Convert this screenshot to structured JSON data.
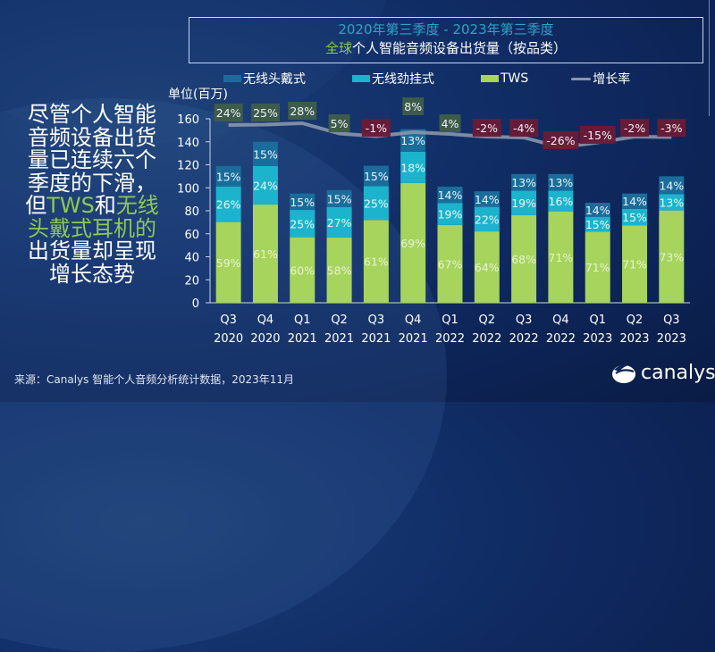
{
  "header": {
    "subtitle": "2020年第三季度 - 2023年第三季度",
    "title_highlight": "全球",
    "title_rest": "个人智能音频设备出货量（按品类）"
  },
  "side_text": {
    "line1": "尽管个人智能",
    "line2": "音频设备出货",
    "line3": "量已连续六个",
    "line4": "季度的下滑，",
    "line5_pre": "但",
    "line5_tws": "TWS",
    "line5_mid": "和",
    "line5_hl": "无线",
    "line6": "头戴式耳机的",
    "line7": "出货量却呈现",
    "line8": "增长态势"
  },
  "footer": {
    "source": "来源：Canalys 智能个人音频分析统计数据，2023年11月",
    "logo_text": "canalys"
  },
  "colors": {
    "headphones": "#1a6d9a",
    "neckband": "#1cb3cc",
    "tws": "#a6d45c",
    "growth_line": "#8a96a8",
    "positive_badge": "#3f5e4a",
    "negative_badge": "#6b1a36"
  },
  "chart_data": {
    "type": "bar",
    "stacked": true,
    "title": "全球个人智能音频设备出货量（按品类）",
    "subtitle": "2020年第三季度 - 2023年第三季度",
    "ylabel": "单位(百万)",
    "ylim": [
      0,
      160
    ],
    "yticks": [
      0,
      20,
      40,
      60,
      80,
      100,
      120,
      140,
      160
    ],
    "legend": [
      "无线头戴式",
      "无线劲挂式",
      "TWS",
      "增长率"
    ],
    "legend_position": "top",
    "categories": [
      [
        "Q3",
        "2020"
      ],
      [
        "Q4",
        "2020"
      ],
      [
        "Q1",
        "2021"
      ],
      [
        "Q2",
        "2021"
      ],
      [
        "Q3",
        "2021"
      ],
      [
        "Q4",
        "2021"
      ],
      [
        "Q1",
        "2022"
      ],
      [
        "Q2",
        "2022"
      ],
      [
        "Q3",
        "2022"
      ],
      [
        "Q4",
        "2022"
      ],
      [
        "Q1",
        "2023"
      ],
      [
        "Q2",
        "2023"
      ],
      [
        "Q3",
        "2023"
      ]
    ],
    "totals": [
      119,
      140,
      95,
      98,
      118,
      151,
      101,
      97,
      112,
      112,
      87,
      95,
      110
    ],
    "series": [
      {
        "name": "TWS",
        "share_pct": [
          59,
          61,
          60,
          58,
          61,
          69,
          67,
          64,
          68,
          71,
          71,
          71,
          73
        ]
      },
      {
        "name": "无线劲挂式",
        "share_pct": [
          26,
          24,
          25,
          27,
          25,
          18,
          19,
          22,
          19,
          16,
          15,
          15,
          13
        ]
      },
      {
        "name": "无线头戴式",
        "share_pct": [
          15,
          15,
          15,
          15,
          15,
          13,
          14,
          14,
          13,
          13,
          14,
          14,
          14
        ]
      }
    ],
    "growth_rate": {
      "name": "增长率",
      "labels": [
        "24%",
        "25%",
        "28%",
        "5%",
        "-1%",
        "8%",
        "4%",
        "-2%",
        "-4%",
        "-26%",
        "-15%",
        "-2%",
        "-3%"
      ],
      "values": [
        24,
        25,
        28,
        5,
        -1,
        8,
        4,
        -2,
        -4,
        -26,
        -15,
        -2,
        -3
      ]
    }
  }
}
